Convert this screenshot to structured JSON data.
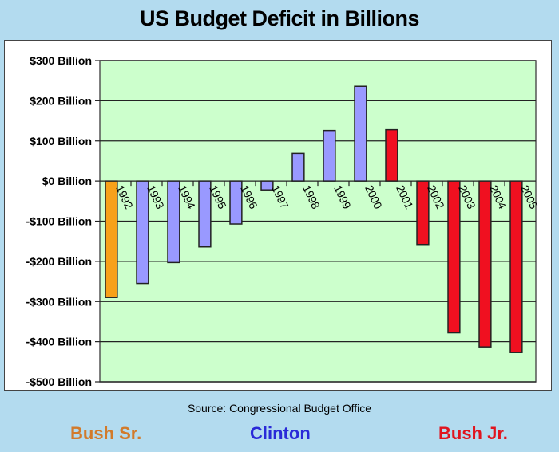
{
  "chart_data": {
    "type": "bar",
    "title": "US Budget Deficit in Billions",
    "xlabel": "",
    "ylabel": "",
    "categories": [
      "1992",
      "1993",
      "1994",
      "1995",
      "1996",
      "1997",
      "1998",
      "1999",
      "2000",
      "2001",
      "2002",
      "2003",
      "2004",
      "2005"
    ],
    "values": [
      -290,
      -255,
      -203,
      -164,
      -107,
      -22,
      69,
      126,
      236,
      128,
      -158,
      -378,
      -413,
      -427
    ],
    "bar_groups": [
      "Bush Sr.",
      "Clinton",
      "Clinton",
      "Clinton",
      "Clinton",
      "Clinton",
      "Clinton",
      "Clinton",
      "Clinton",
      "Bush Jr.",
      "Bush Jr.",
      "Bush Jr.",
      "Bush Jr.",
      "Bush Jr."
    ],
    "ylim": [
      -500,
      300
    ],
    "yticks": [
      300,
      200,
      100,
      0,
      -100,
      -200,
      -300,
      -400,
      -500
    ],
    "ytick_labels": [
      "$300 Billion",
      "$200 Billion",
      "$100 Billion",
      "$0 Billion",
      "-$100 Billion",
      "-$200 Billion",
      "-$300 Billion",
      "-$400 Billion",
      "-$500 Billion"
    ],
    "grid": true,
    "legend": [
      {
        "name": "Bush Sr.",
        "color": "#f7a11a"
      },
      {
        "name": "Clinton",
        "color": "#9999ff"
      },
      {
        "name": "Bush Jr.",
        "color": "#f01020"
      }
    ],
    "source": "Source:  Congressional Budget Office"
  },
  "colors": {
    "plot_bg": "#ccffcc",
    "page_bg": "#b3dbef",
    "bush_sr_text": "#d27a2a",
    "clinton_text": "#2a2ad8",
    "bush_jr_text": "#e0141e"
  }
}
